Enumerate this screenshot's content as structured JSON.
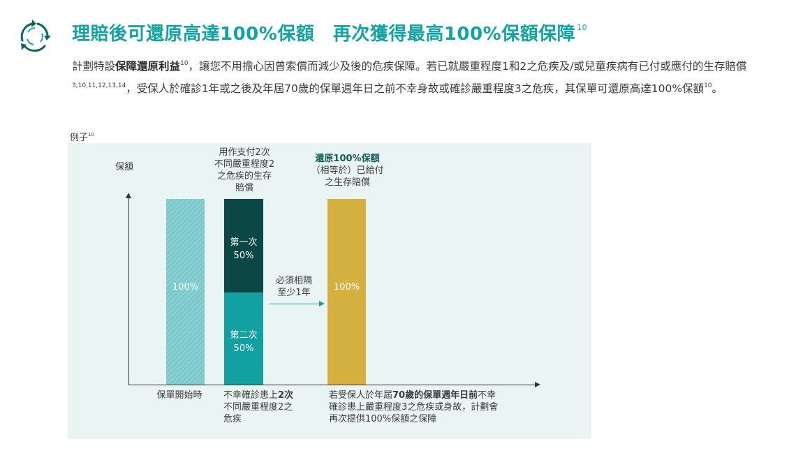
{
  "header": {
    "title": "理賠後可還原高達100%保額　再次獲得最高100%保額保障",
    "title_sup": "10",
    "logo_icon": "circular-arrows-icon"
  },
  "intro": {
    "p1": "計劃特設",
    "bold1": "保障還原利益",
    "sup1": "10",
    "p2": "，讓您不用擔心因曾索償而減少及後的危疾保障。若已就嚴重程度1和2之危疾及/或兒童疾病有已付或應付的生存賠償",
    "sup2": "3,10,11,12,13,14",
    "p3": "，受保人於確診1年或之後及年屆70歲的保單週年日之前不幸身故或確診嚴重程度3之危疾，其保單可還原高達100%保額",
    "sup3": "10",
    "p4": "。"
  },
  "example": {
    "label": "例子",
    "label_sup": "10"
  },
  "chart": {
    "y_label": "保額",
    "top_label_bar2": [
      "用作支付2次",
      "不同嚴重程度2",
      "之危疾的生存",
      "賠償"
    ],
    "top_label_bar3_bold": "還原100%保額",
    "top_label_bar3": [
      "（相等於）已給付",
      "之生存賠償"
    ],
    "bar1_value": "100%",
    "bar2_top": [
      "第一次",
      "50%"
    ],
    "bar2_bottom": [
      "第二次",
      "50%"
    ],
    "bar3_value": "100%",
    "gap_label": [
      "必須相隔",
      "至少1年"
    ],
    "x_label1": "保單開始時",
    "x_label2_pre": "不幸確診患上",
    "x_label2_bold": "2次",
    "x_label2_rest": [
      "不同嚴重程度2之",
      "危疾"
    ],
    "x_label3_pre": "若受保人於年屆",
    "x_label3_bold": "70歲的保單週年日前",
    "x_label3_post": "不幸",
    "x_label3_rest": [
      "確診患上嚴重程度3之危疾或身故，計劃會",
      "再次提供100%保額之保障"
    ]
  },
  "colors": {
    "accent": "#13a3a5",
    "dark_teal": "#0b4744",
    "teal": "#12a0a3",
    "light_teal": "#79c8ca",
    "gold": "#d4b041",
    "panel_bg": "#eaf4f3"
  }
}
